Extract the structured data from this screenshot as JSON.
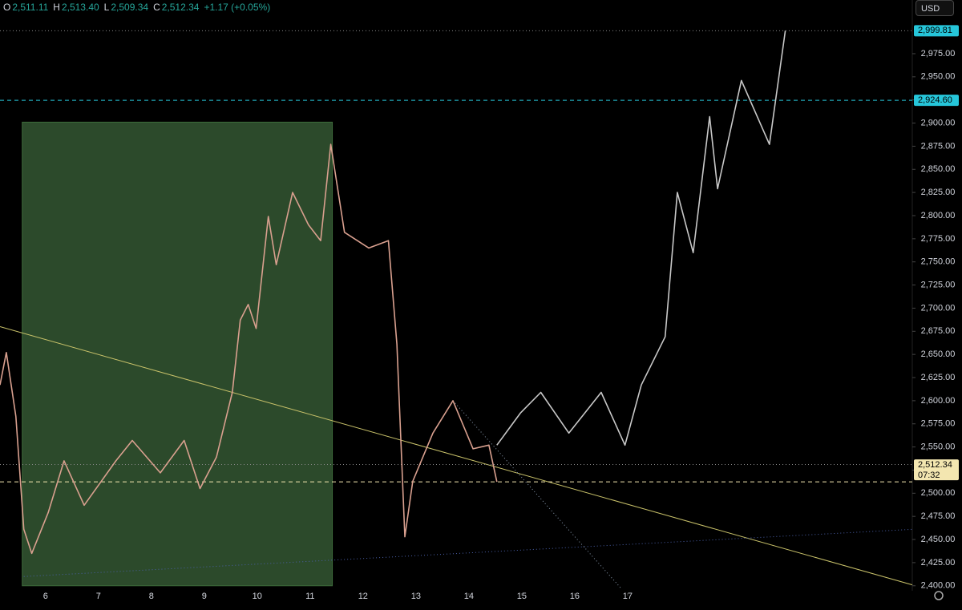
{
  "header": {
    "items": [
      {
        "key": "O",
        "value": "2,511.11"
      },
      {
        "key": "H",
        "value": "2,513.40"
      },
      {
        "key": "L",
        "value": "2,509.34"
      },
      {
        "key": "C",
        "value": "2,512.34"
      }
    ],
    "change": "+1.17 (+0.05%)",
    "currency": "USD"
  },
  "chart_data": {
    "type": "line",
    "xlim": [
      5.14,
      22.38
    ],
    "ylim": [
      2392,
      3033
    ],
    "xticks": [
      6,
      7,
      8,
      9,
      10,
      11,
      12,
      13,
      14,
      15,
      16,
      17
    ],
    "yticks": [
      {
        "value": 2400,
        "label": "2,400.00"
      },
      {
        "value": 2425,
        "label": "2,425.00"
      },
      {
        "value": 2450,
        "label": "2,450.00"
      },
      {
        "value": 2475,
        "label": "2,475.00"
      },
      {
        "value": 2500,
        "label": "2,500.00"
      },
      {
        "value": 2525,
        "label": "2,525.00"
      },
      {
        "value": 2550,
        "label": "2,550.00"
      },
      {
        "value": 2575,
        "label": "2,575.00"
      },
      {
        "value": 2600,
        "label": "2,600.00"
      },
      {
        "value": 2625,
        "label": "2,625.00"
      },
      {
        "value": 2650,
        "label": "2,650.00"
      },
      {
        "value": 2675,
        "label": "2,675.00"
      },
      {
        "value": 2700,
        "label": "2,700.00"
      },
      {
        "value": 2725,
        "label": "2,725.00"
      },
      {
        "value": 2750,
        "label": "2,750.00"
      },
      {
        "value": 2775,
        "label": "2,775.00"
      },
      {
        "value": 2800,
        "label": "2,800.00"
      },
      {
        "value": 2825,
        "label": "2,825.00"
      },
      {
        "value": 2850,
        "label": "2,850.00"
      },
      {
        "value": 2875,
        "label": "2,875.00"
      },
      {
        "value": 2900,
        "label": "2,900.00"
      },
      {
        "value": 2925,
        "label": "2,925.00"
      },
      {
        "value": 2950,
        "label": "2,950.00"
      },
      {
        "value": 2975,
        "label": "2,975.00"
      }
    ],
    "zone": {
      "x": [
        5.56,
        11.42
      ],
      "values": [
        2400,
        2901
      ],
      "color": "#2c4a2b"
    },
    "series": [
      {
        "color": "#d9a08f",
        "x": [
          5.14,
          5.26,
          5.44,
          5.59,
          5.74,
          6.05,
          6.35,
          6.73,
          7.33,
          7.64,
          8.17,
          8.62,
          8.92,
          9.23,
          9.53,
          9.68,
          9.83,
          9.98,
          10.21,
          10.36,
          10.67,
          10.97,
          11.2,
          11.39,
          11.65,
          12.11,
          12.48,
          12.64,
          12.79,
          12.94,
          13.32,
          13.7,
          14.08,
          14.38,
          14.53
        ],
        "values": [
          2617,
          2652,
          2583,
          2461,
          2435,
          2479,
          2535,
          2487,
          2535,
          2557,
          2522,
          2557,
          2505,
          2539,
          2609,
          2687,
          2704,
          2678,
          2799,
          2747,
          2825,
          2790,
          2773,
          2877,
          2782,
          2765,
          2773,
          2661,
          2453,
          2513,
          2565,
          2600,
          2548,
          2552,
          2512.34
        ]
      },
      {
        "color": "#c8c8c8",
        "x": [
          14.53,
          14.98,
          15.36,
          15.89,
          16.5,
          16.95,
          17.26,
          17.71,
          17.94,
          18.24,
          18.55,
          18.7,
          19.15,
          19.68,
          19.98
        ],
        "values": [
          2552,
          2587,
          2609,
          2565,
          2609,
          2552,
          2617,
          2669,
          2825,
          2760,
          2907,
          2829,
          2946,
          2877,
          2999.81
        ]
      }
    ],
    "trendlines": [
      {
        "x": [
          5.14,
          22.38
        ],
        "values": [
          2680,
          2401
        ],
        "color": "#c9c26a",
        "style": "solid"
      },
      {
        "x": [
          5.59,
          22.38
        ],
        "values": [
          2410,
          2461
        ],
        "color": "#4a5fa8",
        "style": "dotted"
      },
      {
        "x": [
          13.7,
          16.88
        ],
        "values": [
          2600,
          2397
        ],
        "color": "#8a9bb0",
        "style": "dotted"
      }
    ],
    "levels": [
      {
        "value": 2999.81,
        "label": "2,999.81",
        "color": "#26c6da",
        "style": "dotted"
      },
      {
        "value": 2924.6,
        "label": "2,924.60",
        "color": "#26c6da",
        "style": "dashed"
      },
      {
        "value": 2531,
        "color": "#777777",
        "style": "dotted"
      },
      {
        "value": 2512.34,
        "label": "2,512.34",
        "timer": "07:32",
        "color": "#f3e6b0",
        "style": "dashed"
      }
    ]
  }
}
